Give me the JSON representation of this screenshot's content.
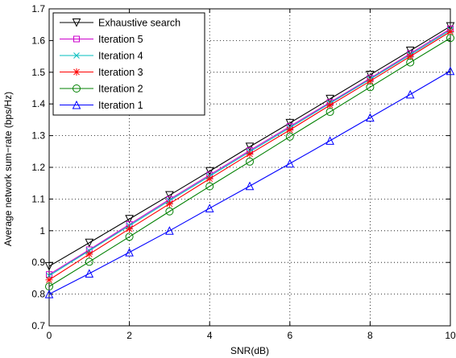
{
  "chart_data": {
    "type": "line",
    "xlabel": "SNR(dB)",
    "ylabel": "Average network sum−rate (bps/Hz)",
    "xlim": [
      0,
      10
    ],
    "ylim": [
      0.7,
      1.7
    ],
    "xticks": [
      "0",
      "2",
      "4",
      "6",
      "8",
      "10"
    ],
    "yticks": [
      "0.7",
      "0.8",
      "0.9",
      "1",
      "1.1",
      "1.2",
      "1.3",
      "1.4",
      "1.5",
      "1.6",
      "1.7"
    ],
    "grid": true,
    "legend_position": "top-left",
    "x": [
      0,
      1,
      2,
      3,
      4,
      5,
      6,
      7,
      8,
      9,
      10
    ],
    "series": [
      {
        "name": "Exhaustive search",
        "color": "#000000",
        "marker": "triangle-down",
        "values": [
          0.888,
          0.962,
          1.037,
          1.112,
          1.188,
          1.265,
          1.34,
          1.416,
          1.492,
          1.568,
          1.645
        ]
      },
      {
        "name": "Iteration 5",
        "color": "#cc00cc",
        "marker": "square",
        "values": [
          0.862,
          0.94,
          1.02,
          1.099,
          1.176,
          1.253,
          1.329,
          1.405,
          1.481,
          1.559,
          1.637
        ]
      },
      {
        "name": "Iteration 4",
        "color": "#00bfbf",
        "marker": "x",
        "values": [
          0.858,
          0.937,
          1.016,
          1.095,
          1.172,
          1.249,
          1.325,
          1.402,
          1.478,
          1.555,
          1.633
        ]
      },
      {
        "name": "Iteration 3",
        "color": "#ff0000",
        "marker": "star",
        "values": [
          0.845,
          0.926,
          1.006,
          1.085,
          1.164,
          1.242,
          1.318,
          1.396,
          1.472,
          1.55,
          1.628
        ]
      },
      {
        "name": "Iteration 2",
        "color": "#008000",
        "marker": "circle",
        "values": [
          0.824,
          0.902,
          0.981,
          1.061,
          1.14,
          1.218,
          1.297,
          1.375,
          1.453,
          1.531,
          1.608
        ]
      },
      {
        "name": "Iteration 1",
        "color": "#0000ff",
        "marker": "triangle-up",
        "values": [
          0.8,
          0.865,
          0.932,
          1.0,
          1.071,
          1.141,
          1.212,
          1.284,
          1.357,
          1.43,
          1.504
        ]
      }
    ]
  }
}
